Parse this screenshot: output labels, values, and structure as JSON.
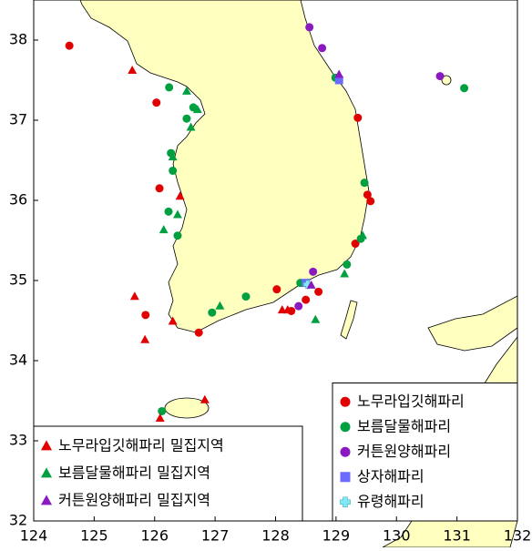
{
  "chart_data": {
    "type": "scatter",
    "xlim": [
      124,
      132
    ],
    "ylim": [
      32,
      38.5
    ],
    "xticks": [
      124,
      125,
      126,
      127,
      128,
      129,
      130,
      131,
      132
    ],
    "yticks": [
      32,
      33,
      34,
      35,
      36,
      37,
      38
    ],
    "series": [
      {
        "name": "노무라입깃해파리",
        "color": "#e00000",
        "marker": "circle",
        "legend": "lower right",
        "x": [
          124.59,
          126.03,
          126.08,
          129.36,
          129.52,
          129.57,
          128.02,
          128.5,
          128.71,
          126.73,
          125.85,
          128.26,
          129.32
        ],
        "y": [
          37.93,
          37.22,
          36.15,
          37.03,
          36.07,
          35.99,
          34.89,
          34.76,
          34.86,
          34.35,
          34.57,
          34.62,
          35.46
        ]
      },
      {
        "name": "보름달물해파리",
        "color": "#00a040",
        "marker": "circle",
        "legend": "lower right",
        "x": [
          126.24,
          126.64,
          126.53,
          126.27,
          126.3,
          126.23,
          126.38,
          129.47,
          129.41,
          129.18,
          128.41,
          127.51,
          126.95,
          126.12,
          131.12,
          128.99
        ],
        "y": [
          37.41,
          37.16,
          37.02,
          36.59,
          36.37,
          35.86,
          35.56,
          36.22,
          35.52,
          35.2,
          34.97,
          34.8,
          34.6,
          33.37,
          37.4,
          37.53
        ]
      },
      {
        "name": "커튼원양해파리",
        "color": "#8a1ac0",
        "marker": "circle",
        "legend": "lower right",
        "x": [
          128.56,
          128.77,
          130.72,
          128.38,
          128.62
        ],
        "y": [
          38.16,
          37.9,
          37.55,
          34.68,
          35.11
        ]
      },
      {
        "name": "상자해파리",
        "color": "#6a6aff",
        "marker": "square",
        "legend": "lower right",
        "x": [
          129.05,
          128.5
        ],
        "y": [
          37.5,
          34.97
        ]
      },
      {
        "name": "유령해파리",
        "color": "#7fe8f0",
        "marker": "cross",
        "legend": "lower right",
        "x": [
          128.53
        ],
        "y": [
          34.95
        ]
      },
      {
        "name": "노무라입깃해파리 밀집지역",
        "color": "#e00000",
        "marker": "triangle",
        "legend": "lower left",
        "x": [
          125.63,
          125.67,
          125.84,
          126.09,
          126.83,
          126.3,
          126.42,
          128.11,
          128.2
        ],
        "y": [
          37.62,
          34.8,
          34.26,
          33.28,
          33.51,
          34.49,
          36.05,
          34.63,
          34.63
        ]
      },
      {
        "name": "보름달물해파리 밀집지역",
        "color": "#00a040",
        "marker": "triangle",
        "legend": "lower left",
        "x": [
          126.53,
          126.6,
          126.3,
          126.38,
          126.15,
          127.08,
          128.66,
          129.14,
          129.44,
          126.71
        ],
        "y": [
          37.36,
          36.91,
          36.54,
          35.82,
          35.63,
          34.68,
          34.51,
          35.08,
          35.56,
          37.13
        ]
      },
      {
        "name": "커튼원양해파리 밀집지역",
        "color": "#8a1ac0",
        "marker": "triangle",
        "legend": "lower left",
        "x": [
          128.59,
          129.05
        ],
        "y": [
          34.94,
          37.57
        ]
      }
    ]
  }
}
